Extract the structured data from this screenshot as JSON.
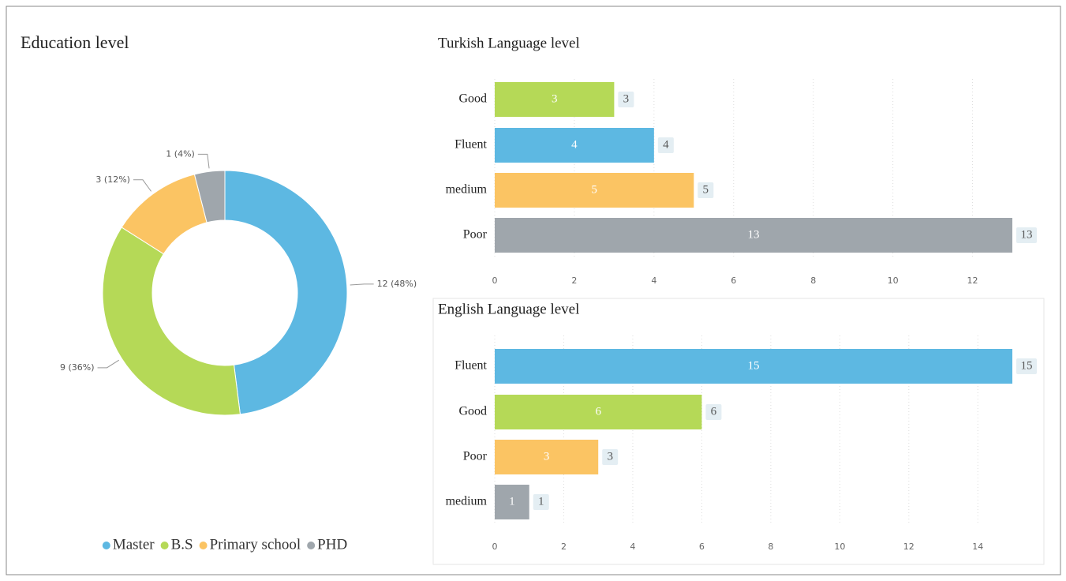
{
  "chart_data": [
    {
      "type": "donut",
      "title": "Education level",
      "categories": [
        "Master",
        "B.S",
        "Primary school",
        "PHD"
      ],
      "values": [
        12,
        9,
        3,
        1
      ],
      "value_labels": [
        "12 (48%)",
        "9 (36%)",
        "3 (12%)",
        "1 (4%)"
      ],
      "colors": [
        "#5db8e2",
        "#b5d957",
        "#fbc463",
        "#9fa6ac"
      ],
      "legend": "bottom"
    },
    {
      "type": "hbar",
      "title": "Turkish Language level",
      "categories": [
        "Good",
        "Fluent",
        "medium",
        "Poor"
      ],
      "values": [
        3,
        4,
        5,
        13
      ],
      "colors": [
        "#b5d957",
        "#5db8e2",
        "#fbc463",
        "#9fa6ac"
      ],
      "xlim": [
        0,
        13
      ],
      "xticks": [
        0,
        2,
        4,
        6,
        8,
        10,
        12
      ],
      "grid": true
    },
    {
      "type": "hbar",
      "title": "English Language level",
      "categories": [
        "Fluent",
        "Good",
        "Poor",
        "medium"
      ],
      "values": [
        15,
        6,
        3,
        1
      ],
      "colors": [
        "#5db8e2",
        "#b5d957",
        "#fbc463",
        "#9fa6ac"
      ],
      "xlim": [
        0,
        15
      ],
      "xticks": [
        0,
        2,
        4,
        6,
        8,
        10,
        12,
        14
      ],
      "grid": true
    }
  ]
}
